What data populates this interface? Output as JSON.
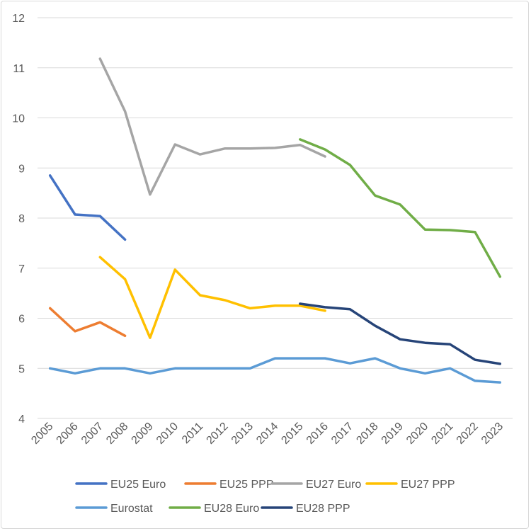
{
  "chart_data": {
    "type": "line",
    "title": "",
    "xlabel": "",
    "ylabel": "",
    "ylim": [
      4,
      12
    ],
    "yticks": [
      4,
      5,
      6,
      7,
      8,
      9,
      10,
      11,
      12
    ],
    "grid": true,
    "legend_position": "bottom",
    "categories": [
      "2005",
      "2006",
      "2007",
      "2008",
      "2009",
      "2010",
      "2011",
      "2012",
      "2013",
      "2014",
      "2015",
      "2016",
      "2017",
      "2018",
      "2019",
      "2020",
      "2021",
      "2022",
      "2023"
    ],
    "series": [
      {
        "name": "EU25 Euro",
        "color": "#4472C4",
        "values": [
          8.85,
          8.07,
          8.04,
          7.57,
          null,
          null,
          null,
          null,
          null,
          null,
          null,
          null,
          null,
          null,
          null,
          null,
          null,
          null,
          null
        ]
      },
      {
        "name": "EU25 PPP",
        "color": "#ED7D31",
        "values": [
          6.2,
          5.74,
          5.92,
          5.65,
          null,
          null,
          null,
          null,
          null,
          null,
          null,
          null,
          null,
          null,
          null,
          null,
          null,
          null,
          null
        ]
      },
      {
        "name": "EU27 Euro",
        "color": "#A5A5A5",
        "values": [
          null,
          null,
          11.18,
          10.13,
          8.47,
          9.47,
          9.27,
          9.39,
          9.39,
          9.4,
          9.46,
          9.23,
          null,
          null,
          null,
          null,
          null,
          null,
          null
        ]
      },
      {
        "name": "EU27 PPP",
        "color": "#FFC000",
        "values": [
          null,
          null,
          7.22,
          6.78,
          5.61,
          6.97,
          6.46,
          6.36,
          6.2,
          6.25,
          6.25,
          6.15,
          null,
          null,
          null,
          null,
          null,
          null,
          null
        ]
      },
      {
        "name": "Eurostat",
        "color": "#5B9BD5",
        "values": [
          5.0,
          4.9,
          5.0,
          5.0,
          4.9,
          5.0,
          5.0,
          5.0,
          5.0,
          5.2,
          5.2,
          5.2,
          5.1,
          5.2,
          5.0,
          4.9,
          5.0,
          4.75,
          4.72
        ]
      },
      {
        "name": "EU28 Euro",
        "color": "#70AD47",
        "values": [
          null,
          null,
          null,
          null,
          null,
          null,
          null,
          null,
          null,
          null,
          9.57,
          9.37,
          9.06,
          8.45,
          8.27,
          7.77,
          7.76,
          7.72,
          6.83
        ]
      },
      {
        "name": "EU28 PPP",
        "color": "#264478",
        "values": [
          null,
          null,
          null,
          null,
          null,
          null,
          null,
          null,
          null,
          null,
          6.29,
          6.22,
          6.18,
          5.85,
          5.58,
          5.51,
          5.48,
          5.17,
          5.09
        ]
      }
    ]
  }
}
